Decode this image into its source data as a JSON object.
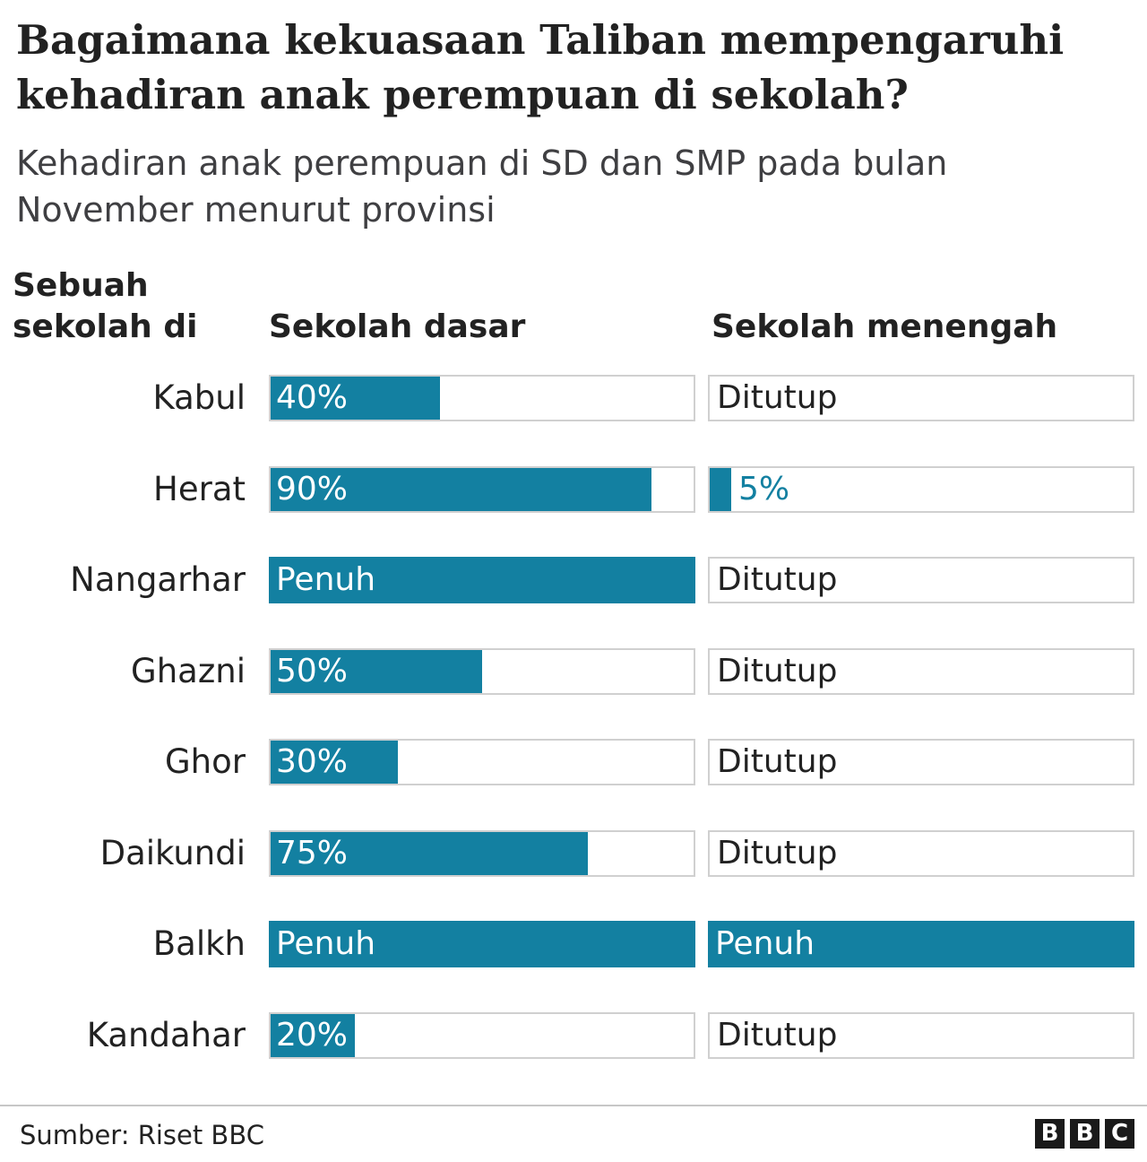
{
  "chart_data": {
    "type": "bar",
    "title": "Bagaimana kekuasaan Taliban mempengaruhi kehadiran anak perempuan di sekolah?",
    "subtitle": "Kehadiran anak perempuan di SD dan SMP pada bulan November menurut provinsi",
    "row_header": "Sebuah sekolah di",
    "categories": [
      "Kabul",
      "Herat",
      "Nangarhar",
      "Ghazni",
      "Ghor",
      "Daikundi",
      "Balkh",
      "Kandahar"
    ],
    "series": [
      {
        "name": "Sekolah dasar",
        "values": [
          40,
          90,
          100,
          50,
          30,
          75,
          100,
          20
        ],
        "labels": [
          "40%",
          "90%",
          "Penuh",
          "50%",
          "30%",
          "75%",
          "Penuh",
          "20%"
        ]
      },
      {
        "name": "Sekolah menengah",
        "values": [
          0,
          5,
          0,
          0,
          0,
          0,
          100,
          0
        ],
        "labels": [
          "Ditutup",
          "5%",
          "Ditutup",
          "Ditutup",
          "Ditutup",
          "Ditutup",
          "Penuh",
          "Ditutup"
        ]
      }
    ],
    "ylim": [
      0,
      100
    ],
    "source": "Sumber: Riset BBC"
  },
  "colors": {
    "bar": "#1380a1",
    "track_border": "#d0d0d0",
    "text_dark": "#222222",
    "text_light": "#ffffff"
  },
  "logo": "BBC"
}
